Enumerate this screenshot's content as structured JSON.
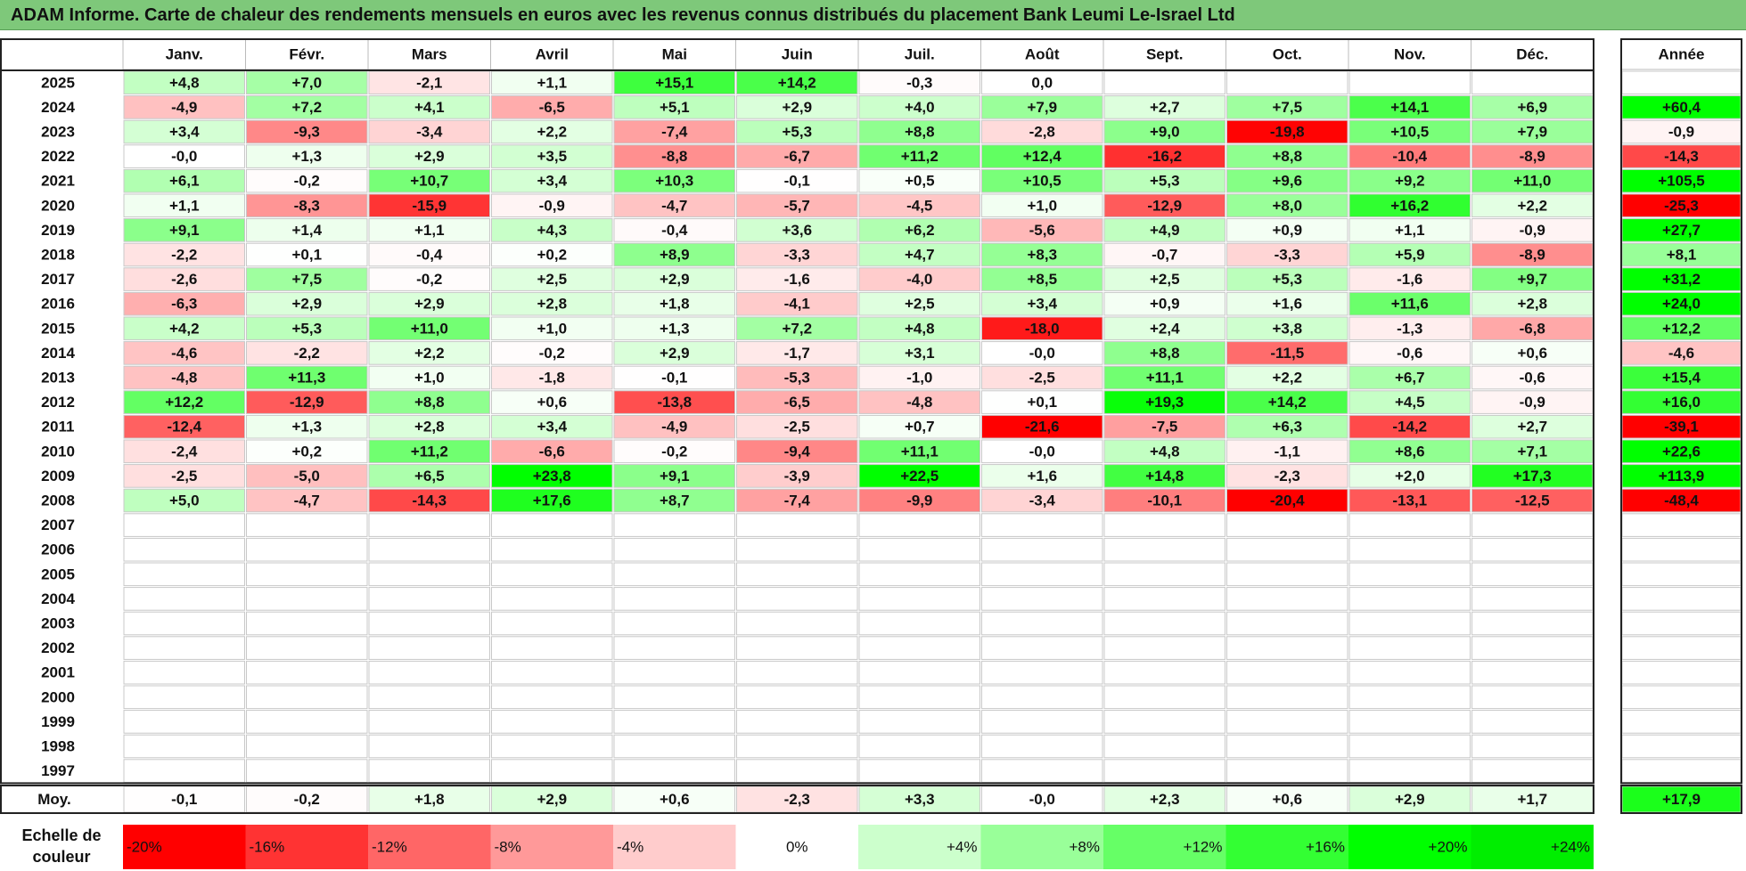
{
  "title": "ADAM Informe. Carte de chaleur des rendements mensuels en euros avec les revenus connus distribués du placement Bank Leumi Le-Israel Ltd",
  "chart_data": {
    "type": "heatmap",
    "months": [
      "Janv.",
      "Févr.",
      "Mars",
      "Avril",
      "Mai",
      "Juin",
      "Juil.",
      "Août",
      "Sept.",
      "Oct.",
      "Nov.",
      "Déc."
    ],
    "year_header": "Année",
    "years": [
      "2025",
      "2024",
      "2023",
      "2022",
      "2021",
      "2020",
      "2019",
      "2018",
      "2017",
      "2016",
      "2015",
      "2014",
      "2013",
      "2012",
      "2011",
      "2010",
      "2009",
      "2008",
      "2007",
      "2006",
      "2005",
      "2004",
      "2003",
      "2002",
      "2001",
      "2000",
      "1999",
      "1998",
      "1997"
    ],
    "values": [
      [
        4.8,
        7.0,
        -2.1,
        1.1,
        15.1,
        14.2,
        -0.3,
        0.0,
        null,
        null,
        null,
        null
      ],
      [
        -4.9,
        7.2,
        4.1,
        -6.5,
        5.1,
        2.9,
        4.0,
        7.9,
        2.7,
        7.5,
        14.1,
        6.9
      ],
      [
        3.4,
        -9.3,
        -3.4,
        2.2,
        -7.4,
        5.3,
        8.8,
        -2.8,
        9.0,
        -19.8,
        10.5,
        7.9
      ],
      [
        -0.0,
        1.3,
        2.9,
        3.5,
        -8.8,
        -6.7,
        11.2,
        12.4,
        -16.2,
        8.8,
        -10.4,
        -8.9
      ],
      [
        6.1,
        -0.2,
        10.7,
        3.4,
        10.3,
        -0.1,
        0.5,
        10.5,
        5.3,
        9.6,
        9.2,
        11.0
      ],
      [
        1.1,
        -8.3,
        -15.9,
        -0.9,
        -4.7,
        -5.7,
        -4.5,
        1.0,
        -12.9,
        8.0,
        16.2,
        2.2
      ],
      [
        9.1,
        1.4,
        1.1,
        4.3,
        -0.4,
        3.6,
        6.2,
        -5.6,
        4.9,
        0.9,
        1.1,
        -0.9
      ],
      [
        -2.2,
        0.1,
        -0.4,
        0.2,
        8.9,
        -3.3,
        4.7,
        8.3,
        -0.7,
        -3.3,
        5.9,
        -8.9
      ],
      [
        -2.6,
        7.5,
        -0.2,
        2.5,
        2.9,
        -1.6,
        -4.0,
        8.5,
        2.5,
        5.3,
        -1.6,
        9.7
      ],
      [
        -6.3,
        2.9,
        2.9,
        2.8,
        1.8,
        -4.1,
        2.5,
        3.4,
        0.9,
        1.6,
        11.6,
        2.8
      ],
      [
        4.2,
        5.3,
        11.0,
        1.0,
        1.3,
        7.2,
        4.8,
        -18.0,
        2.4,
        3.8,
        -1.3,
        -6.8
      ],
      [
        -4.6,
        -2.2,
        2.2,
        -0.2,
        2.9,
        -1.7,
        3.1,
        -0.0,
        8.8,
        -11.5,
        -0.6,
        0.6
      ],
      [
        -4.8,
        11.3,
        1.0,
        -1.8,
        -0.1,
        -5.3,
        -1.0,
        -2.5,
        11.1,
        2.2,
        6.7,
        -0.6
      ],
      [
        12.2,
        -12.9,
        8.8,
        0.6,
        -13.8,
        -6.5,
        -4.8,
        0.1,
        19.3,
        14.2,
        4.5,
        -0.9
      ],
      [
        -12.4,
        1.3,
        2.8,
        3.4,
        -4.9,
        -2.5,
        0.7,
        -21.6,
        -7.5,
        6.3,
        -14.2,
        2.7
      ],
      [
        -2.4,
        0.2,
        11.2,
        -6.6,
        -0.2,
        -9.4,
        11.1,
        -0.0,
        4.8,
        -1.1,
        8.6,
        7.1
      ],
      [
        -2.5,
        -5.0,
        6.5,
        23.8,
        9.1,
        -3.9,
        22.5,
        1.6,
        14.8,
        -2.3,
        2.0,
        17.3
      ],
      [
        5.0,
        -4.7,
        -14.3,
        17.6,
        8.7,
        -7.4,
        -9.9,
        -3.4,
        -10.1,
        -20.4,
        -13.1,
        -12.5
      ],
      [
        null,
        null,
        null,
        null,
        null,
        null,
        null,
        null,
        null,
        null,
        null,
        null
      ],
      [
        null,
        null,
        null,
        null,
        null,
        null,
        null,
        null,
        null,
        null,
        null,
        null
      ],
      [
        null,
        null,
        null,
        null,
        null,
        null,
        null,
        null,
        null,
        null,
        null,
        null
      ],
      [
        null,
        null,
        null,
        null,
        null,
        null,
        null,
        null,
        null,
        null,
        null,
        null
      ],
      [
        null,
        null,
        null,
        null,
        null,
        null,
        null,
        null,
        null,
        null,
        null,
        null
      ],
      [
        null,
        null,
        null,
        null,
        null,
        null,
        null,
        null,
        null,
        null,
        null,
        null
      ],
      [
        null,
        null,
        null,
        null,
        null,
        null,
        null,
        null,
        null,
        null,
        null,
        null
      ],
      [
        null,
        null,
        null,
        null,
        null,
        null,
        null,
        null,
        null,
        null,
        null,
        null
      ],
      [
        null,
        null,
        null,
        null,
        null,
        null,
        null,
        null,
        null,
        null,
        null,
        null
      ],
      [
        null,
        null,
        null,
        null,
        null,
        null,
        null,
        null,
        null,
        null,
        null,
        null
      ],
      [
        null,
        null,
        null,
        null,
        null,
        null,
        null,
        null,
        null,
        null,
        null,
        null
      ]
    ],
    "annual": [
      null,
      60.4,
      -0.9,
      -14.3,
      105.5,
      -25.3,
      27.7,
      8.1,
      31.2,
      24.0,
      12.2,
      -4.6,
      15.4,
      16.0,
      -39.1,
      22.6,
      113.9,
      -48.4,
      null,
      null,
      null,
      null,
      null,
      null,
      null,
      null,
      null,
      null,
      null
    ],
    "average_label": "Moy.",
    "averages": [
      -0.1,
      -0.2,
      1.8,
      2.9,
      0.6,
      -2.3,
      3.3,
      -0.0,
      2.3,
      0.6,
      2.9,
      1.7
    ],
    "average_annual": 17.9,
    "scale_label": "Echelle de couleur",
    "scale": [
      {
        "label": "-20%",
        "value": -20,
        "color": "#ff0000"
      },
      {
        "label": "-16%",
        "value": -16,
        "color": "#ff3333"
      },
      {
        "label": "-12%",
        "value": -12,
        "color": "#ff6666"
      },
      {
        "label": "-8%",
        "value": -8,
        "color": "#ff9999"
      },
      {
        "label": "-4%",
        "value": -4,
        "color": "#ffcccc"
      },
      {
        "label": "0%",
        "value": 0,
        "color": "#ffffff"
      },
      {
        "label": "+4%",
        "value": 4,
        "color": "#ccffcc"
      },
      {
        "label": "+8%",
        "value": 8,
        "color": "#99ff99"
      },
      {
        "label": "+12%",
        "value": 12,
        "color": "#66ff66"
      },
      {
        "label": "+16%",
        "value": 16,
        "color": "#33ff33"
      },
      {
        "label": "+20%",
        "value": 20,
        "color": "#00ff00"
      },
      {
        "label": "+24%",
        "value": 24,
        "color": "#00ee00"
      }
    ]
  }
}
